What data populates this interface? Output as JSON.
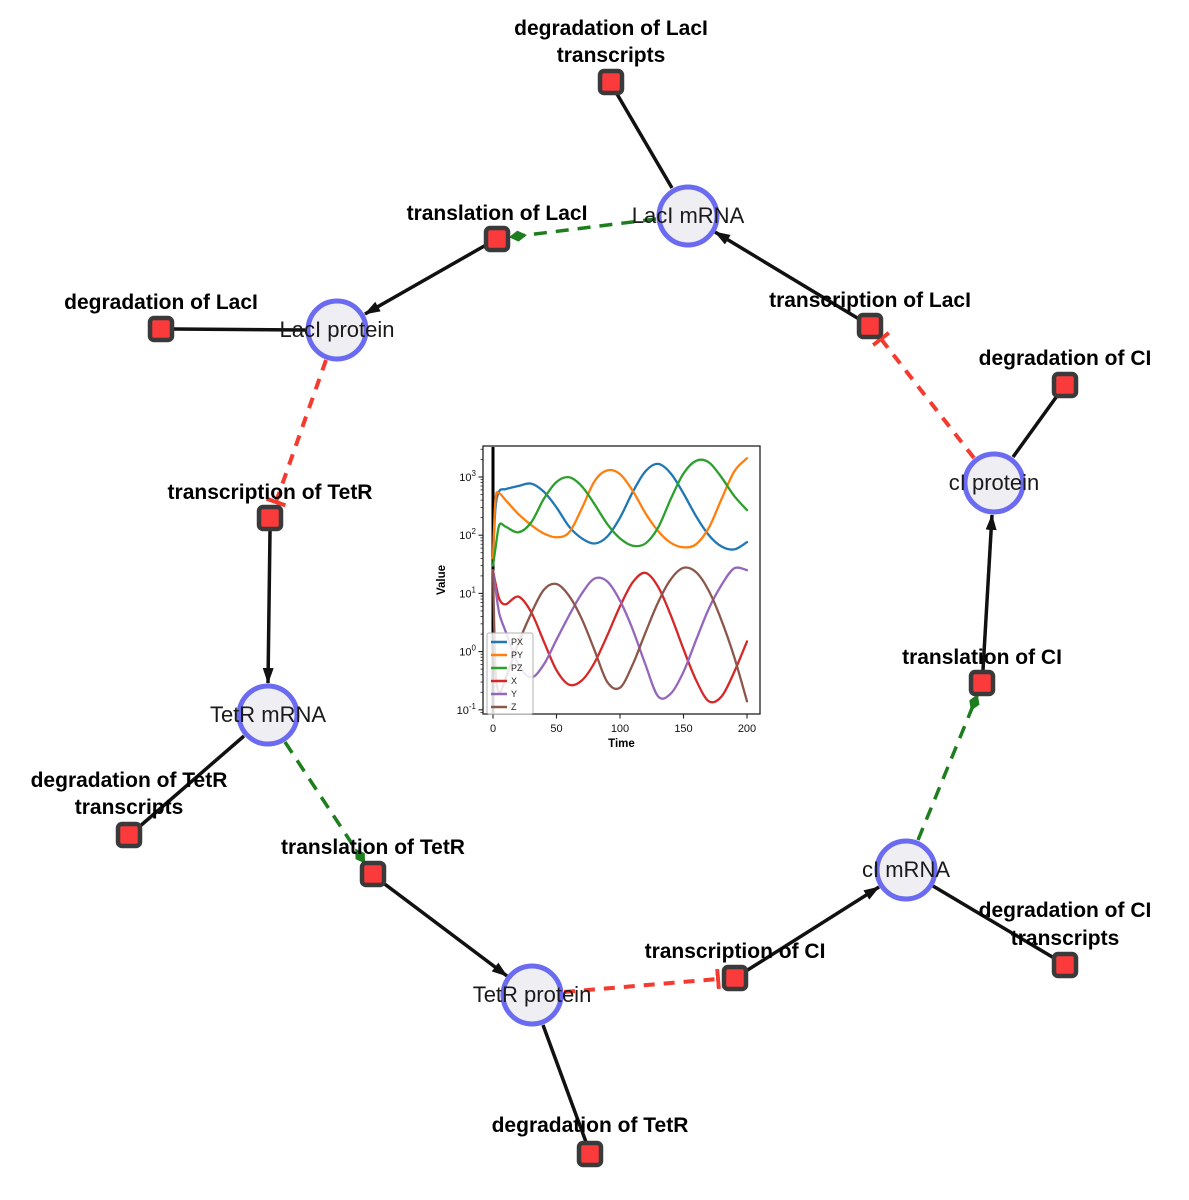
{
  "diagram": {
    "title": "repressilator gene regulatory network",
    "colors": {
      "species_fill": "#eeeef3",
      "species_stroke": "#6b6bf2",
      "reaction_fill": "#fb3b3b",
      "reaction_stroke": "#3a3a3a",
      "edge_reaction": "#111111",
      "edge_translation_modifier": "#1e7d1e",
      "edge_inhibition": "#f53b30"
    },
    "species": {
      "laci_mrna": {
        "label": "LacI mRNA"
      },
      "laci_protein": {
        "label": "LacI protein"
      },
      "tetr_mrna": {
        "label": "TetR mRNA"
      },
      "tetr_protein": {
        "label": "TetR protein"
      },
      "ci_mrna": {
        "label": "cI mRNA"
      },
      "ci_protein": {
        "label": "cI protein"
      }
    },
    "reactions": {
      "deg_laci_tx": {
        "label1": "degradation of LacI",
        "label2": "transcripts"
      },
      "transl_laci": {
        "label1": "translation of LacI"
      },
      "transc_laci": {
        "label1": "transcription of LacI"
      },
      "deg_laci": {
        "label1": "degradation of LacI"
      },
      "transc_tetr": {
        "label1": "transcription of TetR"
      },
      "deg_tetr_tx": {
        "label1": "degradation of TetR",
        "label2": "transcripts"
      },
      "transl_tetr": {
        "label1": "translation of TetR"
      },
      "deg_tetr": {
        "label1": "degradation of TetR"
      },
      "transc_ci": {
        "label1": "transcription of CI"
      },
      "deg_ci_tx": {
        "label1": "degradation of CI",
        "label2": "transcripts"
      },
      "transl_ci": {
        "label1": "translation of CI"
      },
      "deg_ci": {
        "label1": "degradation of CI"
      }
    },
    "edges": [
      {
        "from": "LacI mRNA",
        "to": "degradation of LacI transcripts",
        "type": "reactant"
      },
      {
        "from": "transcription of LacI",
        "to": "LacI mRNA",
        "type": "product"
      },
      {
        "from": "LacI mRNA",
        "to": "translation of LacI",
        "type": "modifier"
      },
      {
        "from": "translation of LacI",
        "to": "LacI protein",
        "type": "product"
      },
      {
        "from": "LacI protein",
        "to": "degradation of LacI",
        "type": "reactant"
      },
      {
        "from": "LacI protein",
        "to": "transcription of TetR",
        "type": "inhibition"
      },
      {
        "from": "transcription of TetR",
        "to": "TetR mRNA",
        "type": "product"
      },
      {
        "from": "TetR mRNA",
        "to": "degradation of TetR transcripts",
        "type": "reactant"
      },
      {
        "from": "TetR mRNA",
        "to": "translation of TetR",
        "type": "modifier"
      },
      {
        "from": "translation of TetR",
        "to": "TetR protein",
        "type": "product"
      },
      {
        "from": "TetR protein",
        "to": "degradation of TetR",
        "type": "reactant"
      },
      {
        "from": "TetR protein",
        "to": "transcription of CI",
        "type": "inhibition"
      },
      {
        "from": "transcription of CI",
        "to": "cI mRNA",
        "type": "product"
      },
      {
        "from": "cI mRNA",
        "to": "degradation of CI transcripts",
        "type": "reactant"
      },
      {
        "from": "cI mRNA",
        "to": "translation of CI",
        "type": "modifier"
      },
      {
        "from": "translation of CI",
        "to": "cI protein",
        "type": "product"
      },
      {
        "from": "cI protein",
        "to": "degradation of CI",
        "type": "reactant"
      },
      {
        "from": "cI protein",
        "to": "transcription of LacI",
        "type": "inhibition"
      }
    ]
  },
  "chart_data": {
    "type": "line",
    "title": "",
    "xlabel": "Time",
    "ylabel": "Value",
    "yscale": "log",
    "grid": false,
    "legend_position": "lower left",
    "xlim": [
      -10.3,
      210.3
    ],
    "ylim": [
      0.085,
      3400
    ],
    "x_ticks": [
      0,
      50,
      100,
      150,
      200
    ],
    "y_tick_exponents": [
      3,
      2,
      1,
      0,
      -1
    ],
    "vline_x": 0,
    "x": [
      0,
      2,
      5,
      10,
      20,
      30,
      40,
      50,
      60,
      70,
      80,
      90,
      100,
      110,
      120,
      130,
      140,
      150,
      160,
      170,
      180,
      190,
      200
    ],
    "series": [
      {
        "name": "PX",
        "color": "#1f77b4",
        "values": [
          40,
          300,
          570,
          620,
          700,
          770,
          560,
          300,
          140,
          88,
          72,
          95,
          200,
          550,
          1250,
          1680,
          1150,
          520,
          210,
          100,
          64,
          57,
          76
        ]
      },
      {
        "name": "PY",
        "color": "#ff7f0e",
        "values": [
          40,
          420,
          520,
          400,
          230,
          150,
          107,
          92,
          112,
          290,
          850,
          1300,
          1120,
          580,
          240,
          118,
          74,
          62,
          70,
          135,
          420,
          1250,
          2100
        ]
      },
      {
        "name": "PZ",
        "color": "#2ca02c",
        "values": [
          30,
          60,
          150,
          140,
          112,
          165,
          420,
          820,
          990,
          690,
          340,
          155,
          88,
          66,
          72,
          135,
          420,
          1150,
          1900,
          1780,
          980,
          470,
          270
        ]
      },
      {
        "name": "X",
        "color": "#d62728",
        "values": [
          25,
          15,
          8,
          6.5,
          8.8,
          4.8,
          1.5,
          0.48,
          0.27,
          0.32,
          0.65,
          1.9,
          6,
          15.5,
          22.5,
          13,
          4.2,
          1.1,
          0.32,
          0.14,
          0.17,
          0.45,
          1.5
        ]
      },
      {
        "name": "Y",
        "color": "#9467bd",
        "values": [
          25,
          12,
          4.5,
          2.2,
          0.6,
          0.36,
          0.6,
          1.6,
          4.2,
          10,
          18,
          16,
          7.5,
          2.4,
          0.6,
          0.17,
          0.19,
          0.45,
          1.6,
          5.5,
          14,
          27,
          25
        ]
      },
      {
        "name": "Z",
        "color": "#8c564b",
        "values": [
          25,
          0.5,
          0.2,
          0.35,
          1.4,
          4.5,
          11.5,
          14.5,
          9,
          3.6,
          1.05,
          0.3,
          0.24,
          0.6,
          2.1,
          7,
          17.5,
          27.5,
          23,
          11,
          3.4,
          0.8,
          0.14
        ]
      }
    ]
  }
}
